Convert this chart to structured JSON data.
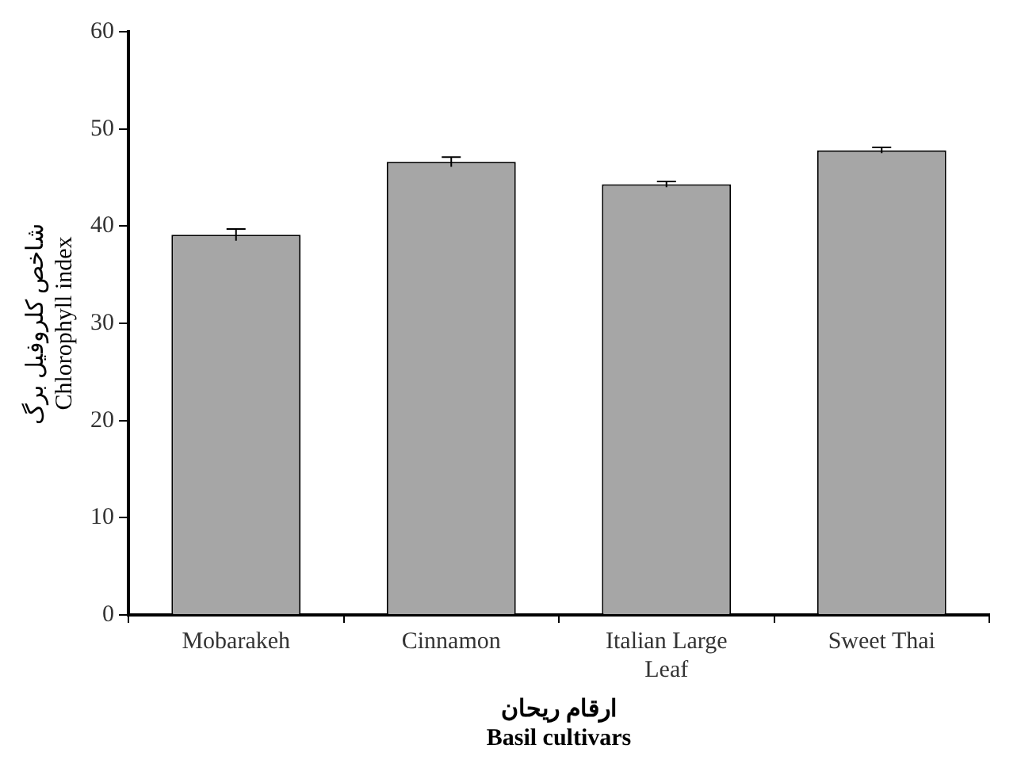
{
  "chart_data": {
    "type": "bar",
    "categories": [
      "Mobarakeh",
      "Cinnamon",
      "Italian Large Leaf",
      "Sweet Thai"
    ],
    "values": [
      39.1,
      46.6,
      44.3,
      47.8
    ],
    "errors": [
      0.6,
      0.5,
      0.3,
      0.3
    ],
    "color": "#a6a6a6",
    "ylim": [
      0,
      60
    ],
    "yticks": [
      0,
      10,
      20,
      30,
      40,
      50,
      60
    ],
    "ylabel": "شاخص کلروفیل برگ\nChlorophyll index",
    "xlabel": "ارقام ریحان\nBasil cultivars",
    "grid": false,
    "legend": false
  }
}
